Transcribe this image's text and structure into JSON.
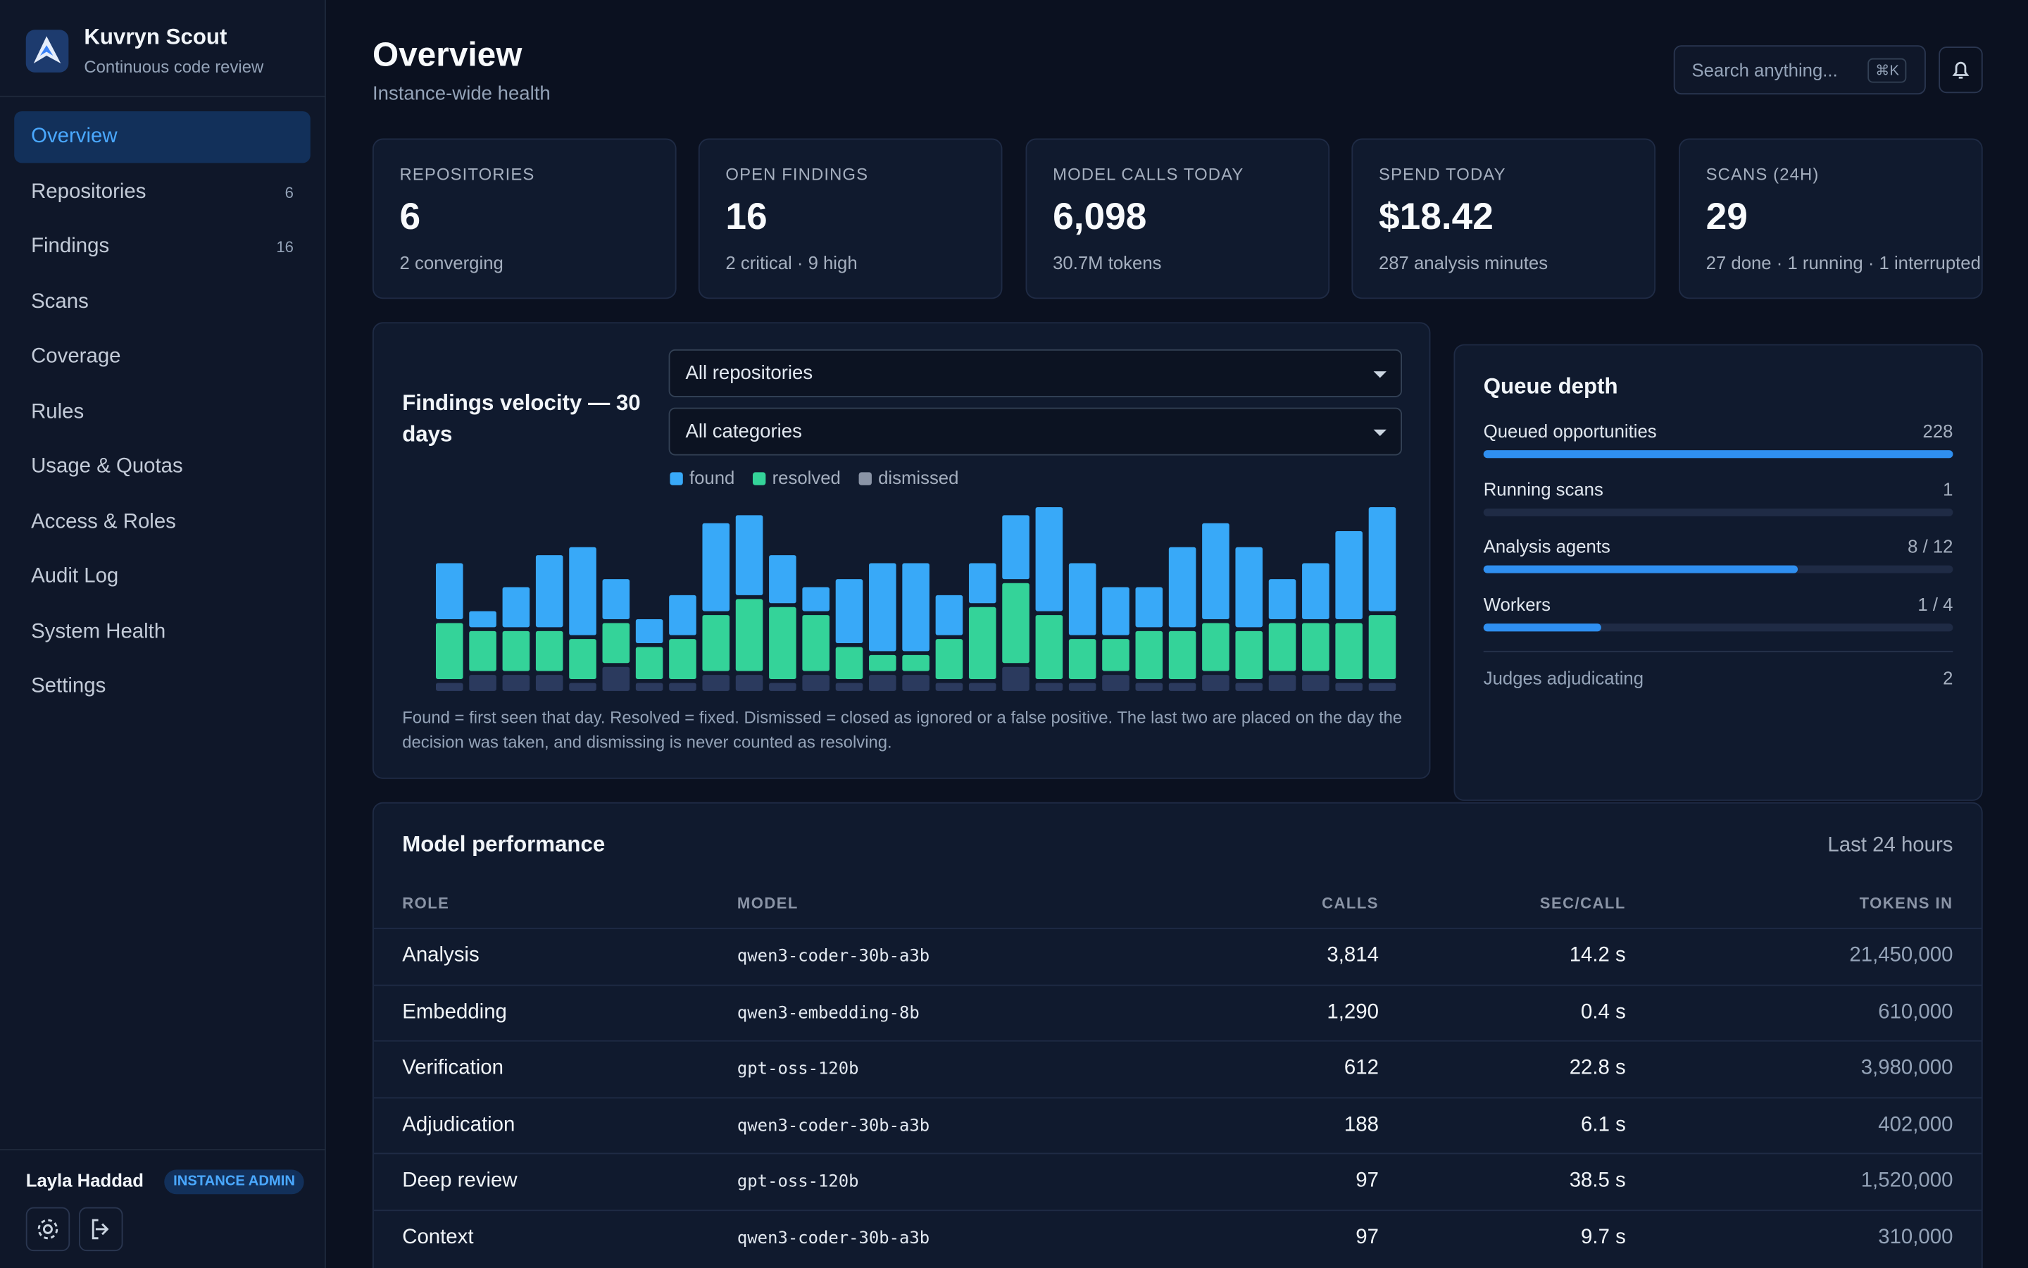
{
  "sidebar": {
    "brand": "Kuvryn Scout",
    "tagline": "Continuous code review",
    "nav": [
      {
        "label": "Overview"
      },
      {
        "label": "Repositories",
        "count": "6"
      },
      {
        "label": "Findings",
        "count": "16"
      },
      {
        "label": "Scans"
      },
      {
        "label": "Coverage"
      },
      {
        "label": "Rules"
      },
      {
        "label": "Usage & Quotas"
      },
      {
        "label": "Access & Roles"
      },
      {
        "label": "Audit Log"
      },
      {
        "label": "System Health"
      },
      {
        "label": "Settings"
      }
    ],
    "user": "Layla Haddad",
    "role": "INSTANCE ADMIN"
  },
  "header": {
    "title": "Overview",
    "subtitle": "Instance-wide health",
    "search": "Search anything...",
    "shortcut": "⌘K"
  },
  "stats": [
    {
      "label": "REPOSITORIES",
      "value": "6",
      "note": "2 converging"
    },
    {
      "label": "OPEN FINDINGS",
      "value": "16",
      "note": "2 critical · 9 high"
    },
    {
      "label": "MODEL CALLS TODAY",
      "value": "6,098",
      "note": "30.7M tokens"
    },
    {
      "label": "SPEND TODAY",
      "value": "$18.42",
      "note": "287 analysis minutes"
    },
    {
      "label": "SCANS (24H)",
      "value": "29",
      "note": "27 done · 1 running · 1 interrupted"
    }
  ],
  "chart_data": {
    "type": "bar",
    "stacked": true,
    "title": "Findings velocity — 30 days",
    "filters": [
      "All repositories",
      "All categories"
    ],
    "categories": [
      null,
      null,
      null,
      null,
      null,
      null,
      null,
      null,
      null,
      null,
      null,
      null,
      null,
      null,
      null,
      null,
      null,
      null,
      null,
      null,
      null,
      null,
      null,
      null,
      null,
      null,
      null,
      null,
      null
    ],
    "series": [
      {
        "name": "found",
        "color": "#38a9f8",
        "values": [
          7,
          2,
          5,
          9,
          11,
          5,
          3,
          5,
          11,
          10,
          6,
          3,
          8,
          11,
          11,
          5,
          5,
          8,
          13,
          9,
          6,
          5,
          10,
          12,
          10,
          5,
          7,
          11,
          13
        ]
      },
      {
        "name": "resolved",
        "color": "#34d399",
        "values": [
          7,
          5,
          5,
          5,
          5,
          5,
          4,
          5,
          7,
          9,
          9,
          7,
          4,
          2,
          2,
          5,
          9,
          10,
          8,
          5,
          4,
          6,
          6,
          6,
          6,
          6,
          6,
          7,
          8
        ]
      },
      {
        "name": "dismissed",
        "color": "#2b3a5e",
        "values": [
          1,
          2,
          2,
          2,
          1,
          3,
          1,
          1,
          2,
          2,
          1,
          2,
          1,
          2,
          2,
          1,
          1,
          3,
          1,
          1,
          2,
          1,
          1,
          2,
          1,
          2,
          2,
          1,
          1
        ]
      }
    ],
    "note": "Found = first seen that day. Resolved = fixed. Dismissed = closed as ignored or a false positive. The last two are placed on the day the decision was taken, and dismissing is never counted as resolving."
  },
  "queue": {
    "title": "Queue depth",
    "rows": [
      {
        "label": "Queued opportunities",
        "count": "228",
        "fill": 1
      },
      {
        "label": "Running scans",
        "count": "1",
        "fill": 0
      },
      {
        "label": "Analysis agents",
        "count": "8 / 12",
        "fill": 0.67
      },
      {
        "label": "Workers",
        "count": "1 / 4",
        "fill": 0.25
      }
    ],
    "footer": {
      "label": "Judges adjudicating",
      "count": "2"
    }
  },
  "models": {
    "title": "Model performance",
    "range": "Last 24 hours",
    "columns": [
      "ROLE",
      "MODEL",
      "CALLS",
      "SEC/CALL",
      "TOKENS IN"
    ],
    "rows": [
      [
        "Analysis",
        "qwen3-coder-30b-a3b",
        "3,814",
        "14.2 s",
        "21,450,000"
      ],
      [
        "Embedding",
        "qwen3-embedding-8b",
        "1,290",
        "0.4 s",
        "610,000"
      ],
      [
        "Verification",
        "gpt-oss-120b",
        "612",
        "22.8 s",
        "3,980,000"
      ],
      [
        "Adjudication",
        "qwen3-coder-30b-a3b",
        "188",
        "6.1 s",
        "402,000"
      ],
      [
        "Deep review",
        "gpt-oss-120b",
        "97",
        "38.5 s",
        "1,520,000"
      ],
      [
        "Context",
        "qwen3-coder-30b-a3b",
        "97",
        "9.7 s",
        "310,000"
      ]
    ]
  }
}
